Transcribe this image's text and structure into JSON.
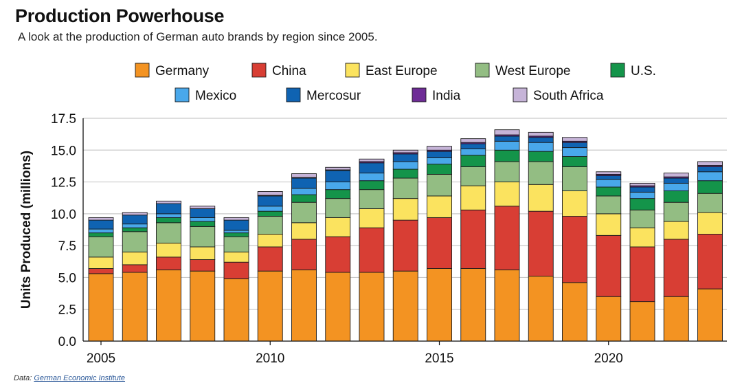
{
  "title": "Production Powerhouse",
  "subtitle": "A look at the production of German auto brands by region since 2005.",
  "source": {
    "prefix": "Data:",
    "link_text": "German Economic Institute"
  },
  "chart_data": {
    "type": "bar",
    "stacked": true,
    "title": "Production Powerhouse",
    "xlabel": "",
    "ylabel": "Units Produced (millions)",
    "ylim": [
      0,
      17.5
    ],
    "yticks": [
      0,
      2.5,
      5,
      7.5,
      10,
      12.5,
      15,
      17.5
    ],
    "ytick_labels": [
      "0.0",
      "2.5",
      "5.0",
      "7.5",
      "10.0",
      "12.5",
      "15.0",
      "17.5"
    ],
    "xticks": [
      2005,
      2010,
      2015,
      2020
    ],
    "xtick_labels": [
      "2005",
      "2010",
      "2015",
      "2020"
    ],
    "grid": true,
    "legend_position": "top",
    "categories": [
      2005,
      2006,
      2007,
      2008,
      2009,
      2010,
      2011,
      2012,
      2013,
      2014,
      2015,
      2016,
      2017,
      2018,
      2019,
      2020,
      2021,
      2022,
      2023
    ],
    "series": [
      {
        "name": "Germany",
        "color": "#f39322",
        "values": [
          5.3,
          5.4,
          5.6,
          5.5,
          4.9,
          5.5,
          5.6,
          5.4,
          5.4,
          5.5,
          5.7,
          5.7,
          5.6,
          5.1,
          4.6,
          3.5,
          3.1,
          3.5,
          4.1
        ]
      },
      {
        "name": "China",
        "color": "#d83e34",
        "values": [
          0.4,
          0.6,
          1.0,
          0.9,
          1.3,
          1.9,
          2.4,
          2.8,
          3.5,
          4.0,
          4.0,
          4.6,
          5.0,
          5.1,
          5.2,
          4.8,
          4.3,
          4.5,
          4.3
        ]
      },
      {
        "name": "East Europe",
        "color": "#fbe35f",
        "values": [
          0.9,
          1.0,
          1.1,
          1.0,
          0.8,
          1.0,
          1.3,
          1.5,
          1.5,
          1.7,
          1.7,
          1.9,
          1.9,
          2.1,
          2.0,
          1.7,
          1.5,
          1.4,
          1.7
        ]
      },
      {
        "name": "West Europe",
        "color": "#93bd83",
        "values": [
          1.6,
          1.6,
          1.6,
          1.6,
          1.2,
          1.4,
          1.6,
          1.5,
          1.5,
          1.6,
          1.7,
          1.5,
          1.6,
          1.8,
          1.9,
          1.4,
          1.4,
          1.5,
          1.5
        ]
      },
      {
        "name": "U.S.",
        "color": "#14944a",
        "values": [
          0.3,
          0.3,
          0.4,
          0.4,
          0.3,
          0.4,
          0.6,
          0.7,
          0.7,
          0.7,
          0.8,
          0.9,
          0.9,
          0.8,
          0.8,
          0.7,
          0.9,
          0.9,
          1.0
        ]
      },
      {
        "name": "Mexico",
        "color": "#49a8eb",
        "values": [
          0.3,
          0.3,
          0.3,
          0.3,
          0.2,
          0.4,
          0.5,
          0.6,
          0.6,
          0.6,
          0.5,
          0.5,
          0.7,
          0.7,
          0.7,
          0.6,
          0.5,
          0.6,
          0.7
        ]
      },
      {
        "name": "Mercosur",
        "color": "#0f63b2",
        "values": [
          0.7,
          0.7,
          0.8,
          0.7,
          0.8,
          0.8,
          0.8,
          0.9,
          0.8,
          0.6,
          0.5,
          0.4,
          0.4,
          0.4,
          0.4,
          0.3,
          0.4,
          0.4,
          0.4
        ]
      },
      {
        "name": "India",
        "color": "#6e2c96",
        "values": [
          0.0,
          0.0,
          0.0,
          0.0,
          0.0,
          0.05,
          0.05,
          0.05,
          0.1,
          0.1,
          0.1,
          0.1,
          0.1,
          0.1,
          0.1,
          0.1,
          0.1,
          0.1,
          0.1
        ]
      },
      {
        "name": "South Africa",
        "color": "#c6b4d8",
        "values": [
          0.2,
          0.2,
          0.2,
          0.2,
          0.2,
          0.3,
          0.3,
          0.2,
          0.2,
          0.2,
          0.3,
          0.3,
          0.4,
          0.3,
          0.3,
          0.2,
          0.2,
          0.3,
          0.3
        ]
      }
    ]
  }
}
